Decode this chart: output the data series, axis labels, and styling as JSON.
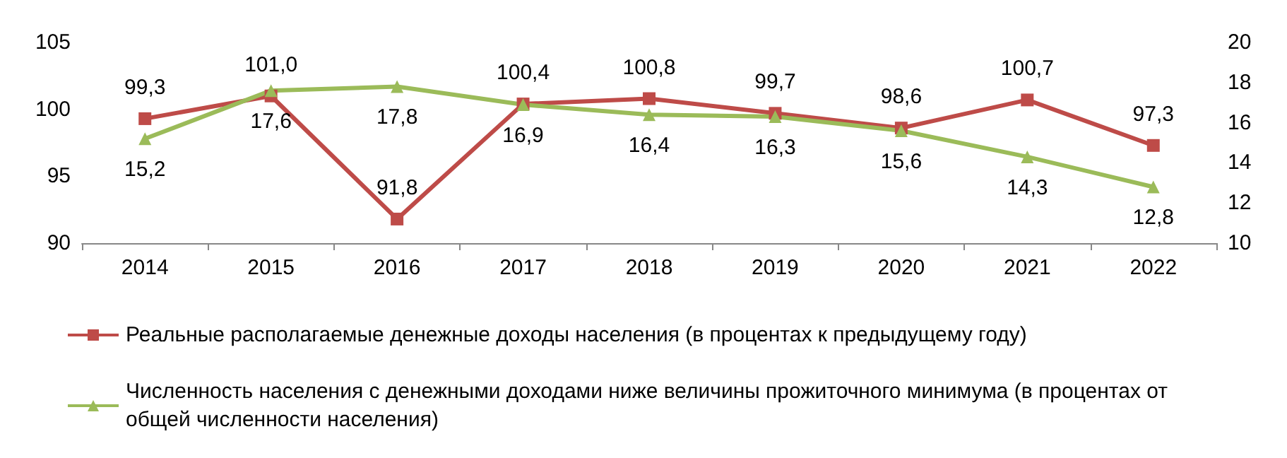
{
  "chart_data": {
    "type": "line",
    "categories": [
      "2014",
      "2015",
      "2016",
      "2017",
      "2018",
      "2019",
      "2020",
      "2021",
      "2022"
    ],
    "series": [
      {
        "name": "Реальные располагаемые денежные доходы населения (в процентах к предыдущему году)",
        "color": "#be4b48",
        "marker": "square",
        "values": [
          99.3,
          101.0,
          91.8,
          100.4,
          100.8,
          99.7,
          98.6,
          100.7,
          97.3
        ],
        "value_labels": [
          "99,3",
          "101,0",
          "91,8",
          "100,4",
          "100,8",
          "99,7",
          "98,6",
          "100,7",
          "97,3"
        ]
      },
      {
        "name": "Численность населения с денежными доходами ниже величины прожиточного минимума (в процентах от общей численности населения)",
        "color": "#9bbb59",
        "marker": "triangle",
        "axis": "y2",
        "values": [
          15.2,
          17.6,
          17.8,
          16.9,
          16.4,
          16.3,
          15.6,
          14.3,
          12.8
        ],
        "value_labels": [
          "15,2",
          "17,6",
          "17,8",
          "16,9",
          "16,4",
          "16,3",
          "15,6",
          "14,3",
          "12,8"
        ]
      }
    ],
    "ylim": [
      90,
      105
    ],
    "yticks": [
      90,
      95,
      100,
      105
    ],
    "y2lim": [
      10,
      20
    ],
    "y2ticks": [
      10,
      12,
      14,
      16,
      18,
      20
    ],
    "grid": false,
    "legend": "bottom",
    "line_style": "solid"
  }
}
